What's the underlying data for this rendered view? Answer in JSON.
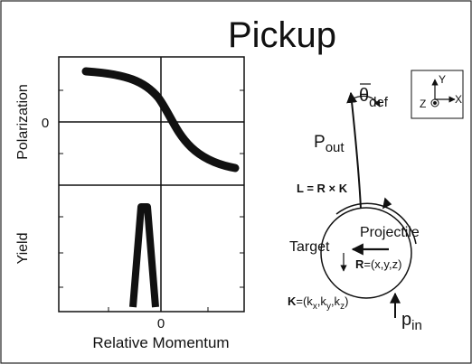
{
  "title": "Pickup",
  "plot": {
    "y_label_top": "Polarization",
    "y_label_bottom": "Yield",
    "y_zero": "0",
    "x_zero": "0",
    "x_label": "Relative Momentum"
  },
  "diagram": {
    "theta": {
      "base": "θ",
      "sub": "def"
    },
    "p_out": {
      "base": "P",
      "sub": "out"
    },
    "l_eq": [
      "L",
      " = ",
      "R",
      " × ",
      "K"
    ],
    "projectile": "Projectile",
    "target": "Target",
    "r_eq": [
      "R",
      "=(x,y,z)"
    ],
    "k_eq": [
      "K",
      "=(k",
      "x",
      ",k",
      "y",
      ",k",
      "z",
      ")"
    ],
    "p_in": {
      "base": "p",
      "sub": "in"
    },
    "axes": {
      "y": "Y",
      "x": "X",
      "z": "Z"
    }
  }
}
